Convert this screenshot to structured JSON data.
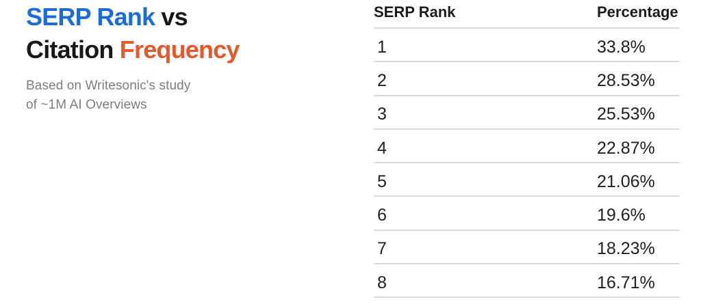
{
  "title": {
    "part1_blue": "SERP Rank",
    "part2_dark": "vs",
    "part3_dark": "Citation",
    "part4_orange": "Frequency"
  },
  "subtitle": {
    "line1": "Based on Writesonic's study",
    "line2": "of ~1M AI Overviews"
  },
  "table": {
    "columns": [
      "SERP Rank",
      "Percentage"
    ],
    "rows": [
      {
        "rank": "1",
        "percentage": "33.8%"
      },
      {
        "rank": "2",
        "percentage": "28.53%"
      },
      {
        "rank": "3",
        "percentage": "25.53%"
      },
      {
        "rank": "4",
        "percentage": "22.87%"
      },
      {
        "rank": "5",
        "percentage": "21.06%"
      },
      {
        "rank": "6",
        "percentage": "19.6%"
      },
      {
        "rank": "7",
        "percentage": "18.23%"
      },
      {
        "rank": "8",
        "percentage": "16.71%"
      }
    ]
  },
  "colors": {
    "background": "#ffffff",
    "title_blue": "#1a6cdb",
    "title_orange": "#e8562a",
    "title_dark": "#17181b",
    "subtitle_gray": "#7b7e80",
    "table_text": "#202124",
    "divider": "#dcdcdc"
  },
  "chart_data": {
    "type": "table",
    "title": "SERP Rank vs Citation Frequency",
    "subtitle": "Based on Writesonic's study of ~1M AI Overviews",
    "columns": [
      "SERP Rank",
      "Percentage"
    ],
    "categories": [
      "1",
      "2",
      "3",
      "4",
      "5",
      "6",
      "7",
      "8"
    ],
    "values": [
      33.8,
      28.53,
      25.53,
      22.87,
      21.06,
      19.6,
      18.23,
      16.71
    ]
  }
}
